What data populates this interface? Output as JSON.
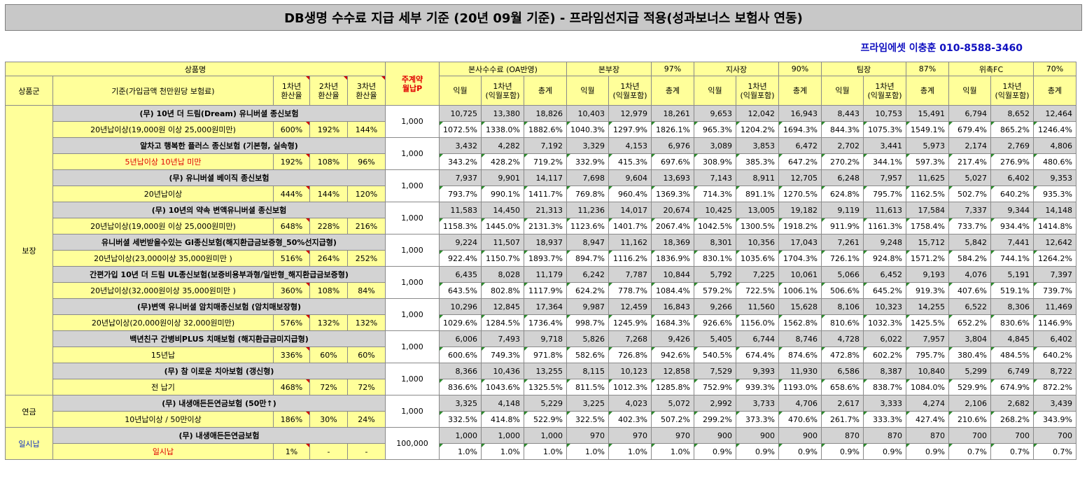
{
  "title": "DB생명 수수료 지급 세부 기준 (20년 09월 기준) - 프라임선지급 적용(성과보너스 보험사 연동)",
  "contact": "프라임에셋 이충훈 010-8588-3460",
  "header": {
    "product_name": "상품명",
    "group": "상품군",
    "criterion": "기준(가입금액 천만원당 보험료)",
    "rate1": "1차년\n환산율",
    "rate2": "2차년\n환산율",
    "rate3": "3차년\n환산율",
    "payment": "주계약\n월납P",
    "sections": [
      {
        "name": "본사수수료 (OA반영)",
        "pct": ""
      },
      {
        "name": "본부장",
        "pct": "97%"
      },
      {
        "name": "지사장",
        "pct": "90%"
      },
      {
        "name": "팀장",
        "pct": "87%"
      },
      {
        "name": "위촉FC",
        "pct": "70%"
      }
    ],
    "sub": [
      "익월",
      "1차년\n(익월포함)",
      "총계"
    ]
  },
  "groups": [
    {
      "name": "보장",
      "start": 0,
      "span": 9
    },
    {
      "name": "연금",
      "start": 9,
      "span": 1
    },
    {
      "name": "일시납",
      "start": 10,
      "span": 1
    }
  ],
  "products": [
    {
      "name": "(무) 10년 더 드림(Dream) 유니버셜 종신보험",
      "criterion": "20년납이상(19,000원 이상 25,000원미만)",
      "red": false,
      "r1": "600%",
      "r2": "192%",
      "r3": "144%",
      "pay": "1,000",
      "amounts": [
        "10,725",
        "13,380",
        "18,826",
        "10,403",
        "12,979",
        "18,261",
        "9,653",
        "12,042",
        "16,943",
        "8,443",
        "10,753",
        "15,491",
        "6,794",
        "8,652",
        "12,464"
      ],
      "percents": [
        "1072.5%",
        "1338.0%",
        "1882.6%",
        "1040.3%",
        "1297.9%",
        "1826.1%",
        "965.3%",
        "1204.2%",
        "1694.3%",
        "844.3%",
        "1075.3%",
        "1549.1%",
        "679.4%",
        "865.2%",
        "1246.4%"
      ]
    },
    {
      "name": "알차고 행복한 플러스 종신보험 (기본형, 실속형)",
      "criterion": "5년납이상 10년납 미만",
      "red": true,
      "r1": "192%",
      "r2": "108%",
      "r3": "96%",
      "pay": "1,000",
      "amounts": [
        "3,432",
        "4,282",
        "7,192",
        "3,329",
        "4,153",
        "6,976",
        "3,089",
        "3,853",
        "6,472",
        "2,702",
        "3,441",
        "5,973",
        "2,174",
        "2,769",
        "4,806"
      ],
      "percents": [
        "343.2%",
        "428.2%",
        "719.2%",
        "332.9%",
        "415.3%",
        "697.6%",
        "308.9%",
        "385.3%",
        "647.2%",
        "270.2%",
        "344.1%",
        "597.3%",
        "217.4%",
        "276.9%",
        "480.6%"
      ]
    },
    {
      "name": "(무) 유니버셜 베이직 종신보험",
      "criterion": "20년납이상",
      "red": false,
      "r1": "444%",
      "r2": "144%",
      "r3": "120%",
      "pay": "1,000",
      "amounts": [
        "7,937",
        "9,901",
        "14,117",
        "7,698",
        "9,604",
        "13,693",
        "7,143",
        "8,911",
        "12,705",
        "6,248",
        "7,957",
        "11,625",
        "5,027",
        "6,402",
        "9,353"
      ],
      "percents": [
        "793.7%",
        "990.1%",
        "1411.7%",
        "769.8%",
        "960.4%",
        "1369.3%",
        "714.3%",
        "891.1%",
        "1270.5%",
        "624.8%",
        "795.7%",
        "1162.5%",
        "502.7%",
        "640.2%",
        "935.3%"
      ]
    },
    {
      "name": "(무) 10년의 약속 변액유니버셜 종신보험",
      "criterion": "20년납이상(19,000원 이상 25,000원미만)",
      "red": false,
      "r1": "648%",
      "r2": "228%",
      "r3": "216%",
      "pay": "1,000",
      "amounts": [
        "11,583",
        "14,450",
        "21,313",
        "11,236",
        "14,017",
        "20,674",
        "10,425",
        "13,005",
        "19,182",
        "9,119",
        "11,613",
        "17,584",
        "7,337",
        "9,344",
        "14,148"
      ],
      "percents": [
        "1158.3%",
        "1445.0%",
        "2131.3%",
        "1123.6%",
        "1401.7%",
        "2067.4%",
        "1042.5%",
        "1300.5%",
        "1918.2%",
        "911.9%",
        "1161.3%",
        "1758.4%",
        "733.7%",
        "934.4%",
        "1414.8%"
      ]
    },
    {
      "name": "유니버셜 세번받을수있는 GI종신보험(해지환급금보증형_50%선지급형)",
      "criterion": "20년납이상(23,000이상 35,000원미만 )",
      "red": false,
      "r1": "516%",
      "r2": "264%",
      "r3": "252%",
      "pay": "1,000",
      "amounts": [
        "9,224",
        "11,507",
        "18,937",
        "8,947",
        "11,162",
        "18,369",
        "8,301",
        "10,356",
        "17,043",
        "7,261",
        "9,248",
        "15,712",
        "5,842",
        "7,441",
        "12,642"
      ],
      "percents": [
        "922.4%",
        "1150.7%",
        "1893.7%",
        "894.7%",
        "1116.2%",
        "1836.9%",
        "830.1%",
        "1035.6%",
        "1704.3%",
        "726.1%",
        "924.8%",
        "1571.2%",
        "584.2%",
        "744.1%",
        "1264.2%"
      ]
    },
    {
      "name": "간편가입 10년 더 드림 UL종신보험(보증비용부과형/일반형_해지환급금보증형)",
      "criterion": "20년납이상(32,000원이상 35,000원미만 )",
      "red": false,
      "r1": "360%",
      "r2": "108%",
      "r3": "84%",
      "pay": "1,000",
      "amounts": [
        "6,435",
        "8,028",
        "11,179",
        "6,242",
        "7,787",
        "10,844",
        "5,792",
        "7,225",
        "10,061",
        "5,066",
        "6,452",
        "9,193",
        "4,076",
        "5,191",
        "7,397"
      ],
      "percents": [
        "643.5%",
        "802.8%",
        "1117.9%",
        "624.2%",
        "778.7%",
        "1084.4%",
        "579.2%",
        "722.5%",
        "1006.1%",
        "506.6%",
        "645.2%",
        "919.3%",
        "407.6%",
        "519.1%",
        "739.7%"
      ]
    },
    {
      "name": "(무)변액 유니버셜 암치매종신보험 (암치매보장형)",
      "criterion": "20년납이상(20,000원이상 32,000원미만)",
      "red": false,
      "r1": "576%",
      "r2": "132%",
      "r3": "132%",
      "pay": "1,000",
      "amounts": [
        "10,296",
        "12,845",
        "17,364",
        "9,987",
        "12,459",
        "16,843",
        "9,266",
        "11,560",
        "15,628",
        "8,106",
        "10,323",
        "14,255",
        "6,522",
        "8,306",
        "11,469"
      ],
      "percents": [
        "1029.6%",
        "1284.5%",
        "1736.4%",
        "998.7%",
        "1245.9%",
        "1684.3%",
        "926.6%",
        "1156.0%",
        "1562.8%",
        "810.6%",
        "1032.3%",
        "1425.5%",
        "652.2%",
        "830.6%",
        "1146.9%"
      ]
    },
    {
      "name": "백년친구 간병비PLUS 치매보험 (해지환급금미지급형)",
      "criterion": "15년납",
      "red": false,
      "r1": "336%",
      "r2": "60%",
      "r3": "60%",
      "pay": "1,000",
      "amounts": [
        "6,006",
        "7,493",
        "9,718",
        "5,826",
        "7,268",
        "9,426",
        "5,405",
        "6,744",
        "8,746",
        "4,728",
        "6,022",
        "7,957",
        "3,804",
        "4,845",
        "6,402"
      ],
      "percents": [
        "600.6%",
        "749.3%",
        "971.8%",
        "582.6%",
        "726.8%",
        "942.6%",
        "540.5%",
        "674.4%",
        "874.6%",
        "472.8%",
        "602.2%",
        "795.7%",
        "380.4%",
        "484.5%",
        "640.2%"
      ]
    },
    {
      "name": "(무) 참 이로운 치아보험 (갱신형)",
      "criterion": "전 납기",
      "red": false,
      "r1": "468%",
      "r2": "72%",
      "r3": "72%",
      "pay": "1,000",
      "amounts": [
        "8,366",
        "10,436",
        "13,255",
        "8,115",
        "10,123",
        "12,858",
        "7,529",
        "9,393",
        "11,930",
        "6,586",
        "8,387",
        "10,840",
        "5,299",
        "6,749",
        "8,722"
      ],
      "percents": [
        "836.6%",
        "1043.6%",
        "1325.5%",
        "811.5%",
        "1012.3%",
        "1285.8%",
        "752.9%",
        "939.3%",
        "1193.0%",
        "658.6%",
        "838.7%",
        "1084.0%",
        "529.9%",
        "674.9%",
        "872.2%"
      ]
    },
    {
      "name": "(무) 내생애든든연금보험 (50만↑)",
      "criterion": "10년납이상 / 50만이상",
      "red": false,
      "r1": "186%",
      "r2": "30%",
      "r3": "24%",
      "pay": "1,000",
      "amounts": [
        "3,325",
        "4,148",
        "5,229",
        "3,225",
        "4,023",
        "5,072",
        "2,992",
        "3,733",
        "4,706",
        "2,617",
        "3,333",
        "4,274",
        "2,106",
        "2,682",
        "3,439"
      ],
      "percents": [
        "332.5%",
        "414.8%",
        "522.9%",
        "322.5%",
        "402.3%",
        "507.2%",
        "299.2%",
        "373.3%",
        "470.6%",
        "261.7%",
        "333.3%",
        "427.4%",
        "210.6%",
        "268.2%",
        "343.9%"
      ]
    },
    {
      "name": "(무) 내생애든든연금보험",
      "criterion": "일시납",
      "red": true,
      "r1": "1%",
      "r2": "-",
      "r3": "-",
      "pay": "100,000",
      "amounts": [
        "1,000",
        "1,000",
        "1,000",
        "970",
        "970",
        "970",
        "900",
        "900",
        "900",
        "870",
        "870",
        "870",
        "700",
        "700",
        "700"
      ],
      "percents": [
        "1.0%",
        "1.0%",
        "1.0%",
        "1.0%",
        "1.0%",
        "1.0%",
        "0.9%",
        "0.9%",
        "0.9%",
        "0.9%",
        "0.9%",
        "0.9%",
        "0.7%",
        "0.7%",
        "0.7%"
      ]
    }
  ],
  "colors": {
    "highlight": "#ffff9a",
    "product_row": "#d3d3d3",
    "contact": "#1010c0",
    "alert": "#e00000"
  }
}
